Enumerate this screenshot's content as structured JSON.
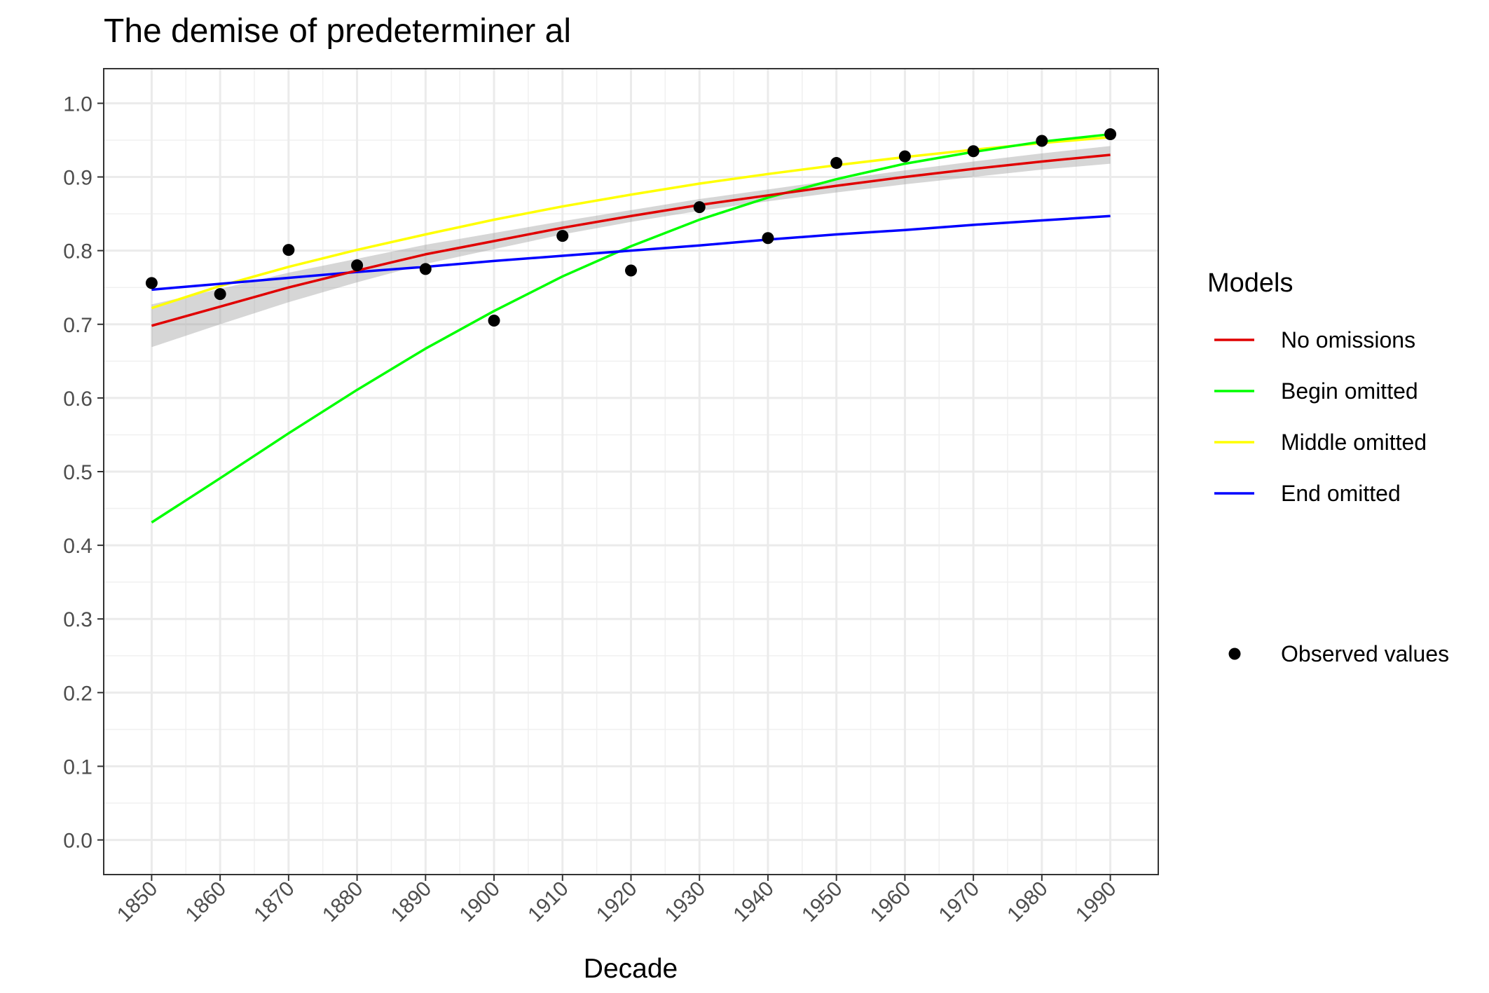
{
  "chart_data": {
    "type": "line",
    "title": "The demise of predeterminer al",
    "xlabel": "Decade",
    "ylabel": "",
    "x": [
      1850,
      1860,
      1870,
      1880,
      1890,
      1900,
      1910,
      1920,
      1930,
      1940,
      1950,
      1960,
      1970,
      1980,
      1990
    ],
    "x_tick_labels": [
      "1850",
      "1860",
      "1870",
      "1880",
      "1890",
      "1900",
      "1910",
      "1920",
      "1930",
      "1940",
      "1950",
      "1960",
      "1970",
      "1980",
      "1990"
    ],
    "xlim": [
      1843,
      1997
    ],
    "y_ticks": [
      0.0,
      0.1,
      0.2,
      0.3,
      0.4,
      0.5,
      0.6,
      0.7,
      0.8,
      0.9,
      1.0
    ],
    "y_tick_labels": [
      "0.0",
      "0.1",
      "0.2",
      "0.3",
      "0.4",
      "0.5",
      "0.6",
      "0.7",
      "0.8",
      "0.9",
      "1.0"
    ],
    "ylim": [
      -0.047,
      1.047
    ],
    "grid": true,
    "legend": {
      "title": "Models",
      "placement": "right",
      "line_entries": [
        "No omissions",
        "Begin omitted",
        "Middle omitted",
        "End omitted"
      ],
      "point_entry": "Observed values"
    },
    "series": [
      {
        "name": "No omissions",
        "color": "#e00000",
        "values": [
          0.698,
          0.724,
          0.75,
          0.773,
          0.795,
          0.813,
          0.831,
          0.847,
          0.862,
          0.875,
          0.888,
          0.9,
          0.911,
          0.921,
          0.93
        ],
        "ci_lower": [
          0.669,
          0.7,
          0.73,
          0.757,
          0.782,
          0.802,
          0.822,
          0.839,
          0.854,
          0.867,
          0.879,
          0.89,
          0.9,
          0.91,
          0.918
        ],
        "ci_upper": [
          0.727,
          0.748,
          0.77,
          0.789,
          0.808,
          0.824,
          0.84,
          0.855,
          0.87,
          0.883,
          0.896,
          0.909,
          0.921,
          0.932,
          0.942
        ]
      },
      {
        "name": "Begin omitted",
        "color": "#00ff00",
        "values": [
          0.431,
          0.491,
          0.552,
          0.611,
          0.667,
          0.718,
          0.765,
          0.806,
          0.842,
          0.872,
          0.897,
          0.918,
          0.934,
          0.948,
          0.958
        ]
      },
      {
        "name": "Middle omitted",
        "color": "#ffff00",
        "values": [
          0.722,
          0.752,
          0.778,
          0.801,
          0.822,
          0.842,
          0.86,
          0.876,
          0.891,
          0.904,
          0.916,
          0.927,
          0.937,
          0.946,
          0.954
        ]
      },
      {
        "name": "End omitted",
        "color": "#0000ff",
        "values": [
          0.747,
          0.755,
          0.763,
          0.771,
          0.778,
          0.786,
          0.793,
          0.8,
          0.807,
          0.815,
          0.822,
          0.828,
          0.835,
          0.841,
          0.847
        ]
      }
    ],
    "observed": {
      "name": "Observed values",
      "color": "#000000",
      "values": [
        0.756,
        0.741,
        0.801,
        0.78,
        0.775,
        0.705,
        0.82,
        0.773,
        0.859,
        0.817,
        0.919,
        0.928,
        0.935,
        0.949,
        0.958
      ]
    }
  }
}
